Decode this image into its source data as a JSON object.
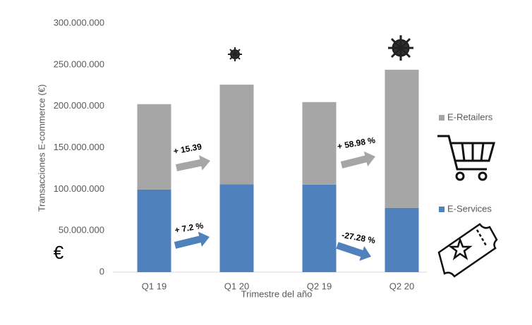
{
  "chart_data": {
    "type": "bar",
    "stacked": true,
    "x_label": "Trimestre del año",
    "y_label": "Transacciones E-commerce (€)",
    "categories": [
      "Q1 19",
      "Q1 20",
      "Q2 19",
      "Q2 20"
    ],
    "series": [
      {
        "name": "E-Services",
        "color": "#4f81bd",
        "values": [
          99500000,
          106000000,
          105500000,
          77500000
        ]
      },
      {
        "name": "E-Retailers",
        "color": "#a6a6a6",
        "values": [
          103000000,
          120000000,
          99500000,
          166500000
        ]
      }
    ],
    "ylim": [
      0,
      300000000
    ],
    "yticks": [
      0,
      {
        "value": 50000000,
        "label": "50.000.000"
      },
      {
        "value": 100000000,
        "label": "100.000.000"
      },
      {
        "value": 150000000,
        "label": "150.000.000"
      },
      {
        "value": 200000000,
        "label": "200.000.000"
      },
      {
        "value": 250000000,
        "label": "250.000.000"
      },
      {
        "value": 300000000,
        "label": "300.000.000"
      }
    ],
    "annotations": [
      "+ 15.39",
      "+ 7.2 %",
      "+ 58.98 %",
      "-27.28 %"
    ],
    "currency_symbol": "€",
    "legend": "right"
  }
}
